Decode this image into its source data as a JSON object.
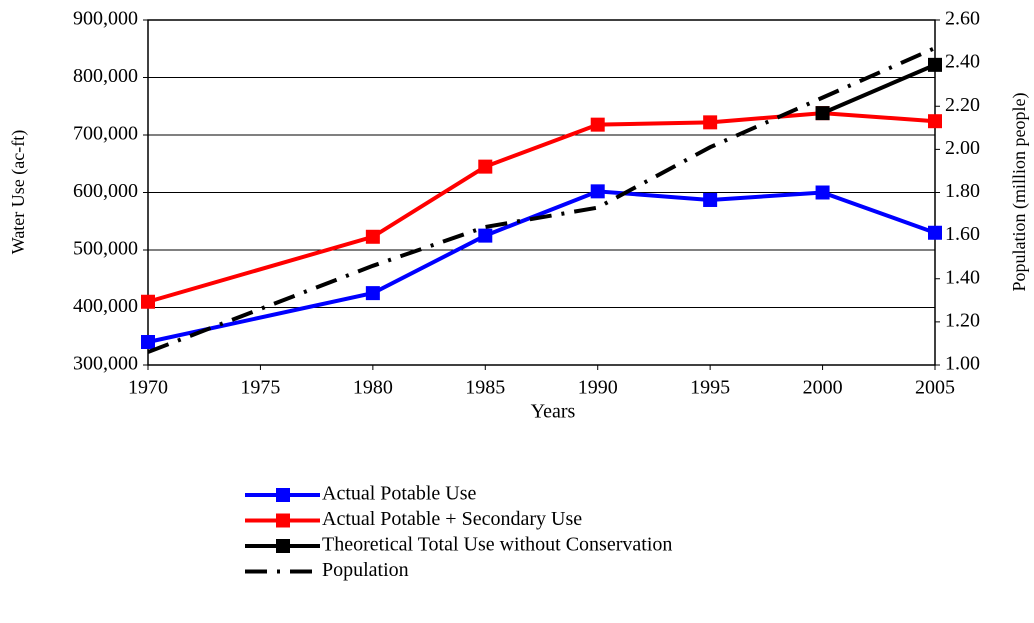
{
  "chart_data": {
    "type": "line",
    "x_label": "Years",
    "y_label": "Water Use (ac-ft)",
    "y2_label": "Population (million people)",
    "x": [
      1970,
      1980,
      1985,
      1990,
      1995,
      2000,
      2005
    ],
    "xlim": [
      1970,
      2005
    ],
    "xticks": [
      1970,
      1975,
      1980,
      1985,
      1990,
      1995,
      2000,
      2005
    ],
    "ylim": [
      300000,
      900000
    ],
    "yticks": [
      {
        "value": 300000,
        "label": "300,000"
      },
      {
        "value": 400000,
        "label": "400,000"
      },
      {
        "value": 500000,
        "label": "500,000"
      },
      {
        "value": 600000,
        "label": "600,000"
      },
      {
        "value": 700000,
        "label": "700,000"
      },
      {
        "value": 800000,
        "label": "800,000"
      },
      {
        "value": 900000,
        "label": "900,000"
      }
    ],
    "y2lim": [
      1.0,
      2.6
    ],
    "y2ticks": [
      {
        "value": 1.0,
        "label": "1.00"
      },
      {
        "value": 1.2,
        "label": "1.20"
      },
      {
        "value": 1.4,
        "label": "1.40"
      },
      {
        "value": 1.6,
        "label": "1.60"
      },
      {
        "value": 1.8,
        "label": "1.80"
      },
      {
        "value": 2.0,
        "label": "2.00"
      },
      {
        "value": 2.2,
        "label": "2.20"
      },
      {
        "value": 2.4,
        "label": "2.40"
      },
      {
        "value": 2.6,
        "label": "2.60"
      }
    ],
    "grid": true,
    "series": [
      {
        "name": "Actual Potable Use",
        "color": "#0000ff",
        "marker": "square",
        "values": [
          340000,
          425000,
          525000,
          602000,
          587000,
          600000,
          530000
        ]
      },
      {
        "name": "Actual Potable + Secondary Use",
        "color": "#ff0000",
        "marker": "square",
        "values": [
          410000,
          523000,
          645000,
          718000,
          722000,
          738000,
          724000
        ]
      },
      {
        "name": "Theoretical Total Use without Conservation",
        "color": "#000000",
        "marker": "square",
        "values": [
          null,
          null,
          null,
          null,
          null,
          738000,
          822000
        ]
      },
      {
        "name": "Population",
        "color": "#000000",
        "axis": "y2",
        "dash": "dash-dot",
        "values": [
          1.06,
          1.46,
          1.64,
          1.73,
          2.01,
          2.24,
          2.47
        ]
      }
    ]
  }
}
